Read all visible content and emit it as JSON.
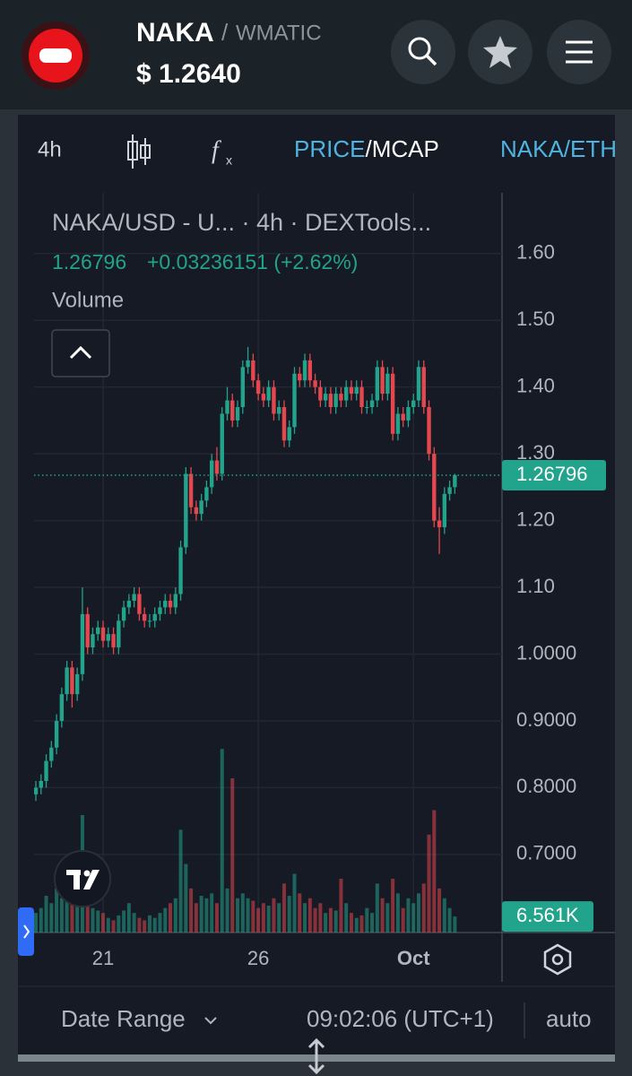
{
  "header": {
    "symbol": "NAKA",
    "separator": "/",
    "quote": "WMATIC",
    "price": "$ 1.2640"
  },
  "toolbar": {
    "interval": "4h",
    "price": "PRICE",
    "slash": "/",
    "mcap": "MCAP",
    "pair": "NAKA/ETH"
  },
  "footer": {
    "range": "Date Range",
    "time": "09:02:06 (UTC+1)",
    "mode": "auto"
  },
  "chart_data": {
    "type": "candlestick",
    "title": "NAKA/USD - U... · 4h · DEXTools...",
    "change": "+0.03236151 (+2.62%)",
    "volume_title": "Volume",
    "up_color": "#22a38b",
    "down_color": "#e5474f",
    "grid": true,
    "categories": [
      null,
      null,
      null,
      null,
      null,
      null,
      null,
      null,
      null,
      null,
      null,
      null,
      null,
      "21",
      null,
      null,
      null,
      null,
      null,
      null,
      null,
      null,
      null,
      null,
      null,
      null,
      null,
      null,
      null,
      null,
      null,
      null,
      null,
      null,
      null,
      null,
      null,
      null,
      null,
      null,
      null,
      null,
      null,
      "26",
      null,
      null,
      null,
      null,
      null,
      null,
      null,
      null,
      null,
      null,
      null,
      null,
      null,
      null,
      null,
      null,
      null,
      null,
      null,
      null,
      null,
      null,
      null,
      null,
      null,
      null,
      null,
      null,
      null,
      "Oct",
      null,
      null,
      null,
      null,
      null,
      null,
      null,
      null
    ],
    "open": [
      0.79,
      0.8,
      0.81,
      0.84,
      0.86,
      0.9,
      0.94,
      0.98,
      0.94,
      0.97,
      1.06,
      1.01,
      1.03,
      1.04,
      1.02,
      1.03,
      1.01,
      1.05,
      1.07,
      1.08,
      1.09,
      1.06,
      1.05,
      1.05,
      1.06,
      1.07,
      1.08,
      1.07,
      1.09,
      1.16,
      1.27,
      1.22,
      1.21,
      1.23,
      1.25,
      1.29,
      1.27,
      1.36,
      1.38,
      1.35,
      1.37,
      1.43,
      1.44,
      1.41,
      1.39,
      1.38,
      1.4,
      1.36,
      1.37,
      1.32,
      1.34,
      1.42,
      1.41,
      1.44,
      1.41,
      1.4,
      1.38,
      1.39,
      1.37,
      1.39,
      1.38,
      1.4,
      1.39,
      1.4,
      1.37,
      1.37,
      1.38,
      1.43,
      1.39,
      1.42,
      1.33,
      1.36,
      1.35,
      1.37,
      1.38,
      1.43,
      1.37,
      1.3,
      1.2,
      1.19,
      1.24,
      1.25
    ],
    "high": [
      0.81,
      0.82,
      0.85,
      0.87,
      0.91,
      0.95,
      0.99,
      0.99,
      0.98,
      1.1,
      1.07,
      1.04,
      1.05,
      1.05,
      1.04,
      1.04,
      1.06,
      1.08,
      1.09,
      1.1,
      1.1,
      1.07,
      1.06,
      1.07,
      1.08,
      1.09,
      1.09,
      1.1,
      1.17,
      1.28,
      1.28,
      1.23,
      1.24,
      1.26,
      1.3,
      1.31,
      1.37,
      1.4,
      1.39,
      1.38,
      1.44,
      1.46,
      1.45,
      1.42,
      1.4,
      1.41,
      1.41,
      1.38,
      1.38,
      1.35,
      1.43,
      1.43,
      1.45,
      1.45,
      1.42,
      1.41,
      1.4,
      1.4,
      1.4,
      1.4,
      1.41,
      1.41,
      1.41,
      1.41,
      1.38,
      1.39,
      1.44,
      1.44,
      1.43,
      1.43,
      1.37,
      1.37,
      1.38,
      1.39,
      1.44,
      1.44,
      1.38,
      1.31,
      1.22,
      1.25,
      1.26,
      1.27
    ],
    "low": [
      0.78,
      0.79,
      0.8,
      0.83,
      0.85,
      0.89,
      0.93,
      0.92,
      0.93,
      0.96,
      1.0,
      1.0,
      1.02,
      1.01,
      1.01,
      1.0,
      1.0,
      1.04,
      1.06,
      1.07,
      1.05,
      1.04,
      1.04,
      1.04,
      1.05,
      1.06,
      1.06,
      1.06,
      1.08,
      1.15,
      1.21,
      1.2,
      1.2,
      1.22,
      1.24,
      1.26,
      1.26,
      1.35,
      1.34,
      1.34,
      1.36,
      1.42,
      1.4,
      1.38,
      1.37,
      1.37,
      1.35,
      1.35,
      1.31,
      1.31,
      1.33,
      1.4,
      1.4,
      1.4,
      1.39,
      1.37,
      1.37,
      1.36,
      1.36,
      1.37,
      1.37,
      1.38,
      1.38,
      1.36,
      1.36,
      1.36,
      1.37,
      1.38,
      1.38,
      1.32,
      1.32,
      1.34,
      1.34,
      1.36,
      1.37,
      1.36,
      1.29,
      1.19,
      1.15,
      1.18,
      1.23,
      1.24
    ],
    "close": [
      0.8,
      0.81,
      0.84,
      0.86,
      0.9,
      0.94,
      0.98,
      0.94,
      0.97,
      1.06,
      1.01,
      1.03,
      1.04,
      1.02,
      1.03,
      1.01,
      1.05,
      1.07,
      1.08,
      1.09,
      1.06,
      1.05,
      1.05,
      1.06,
      1.07,
      1.08,
      1.07,
      1.09,
      1.16,
      1.27,
      1.22,
      1.21,
      1.23,
      1.25,
      1.29,
      1.27,
      1.36,
      1.38,
      1.35,
      1.37,
      1.43,
      1.44,
      1.41,
      1.39,
      1.38,
      1.4,
      1.36,
      1.37,
      1.32,
      1.34,
      1.42,
      1.41,
      1.44,
      1.41,
      1.4,
      1.38,
      1.39,
      1.37,
      1.39,
      1.38,
      1.4,
      1.39,
      1.4,
      1.37,
      1.37,
      1.38,
      1.43,
      1.39,
      1.42,
      1.33,
      1.36,
      1.35,
      1.37,
      1.38,
      1.43,
      1.37,
      1.3,
      1.2,
      1.19,
      1.24,
      1.25,
      1.26796
    ],
    "volume": [
      8000,
      10000,
      15000,
      12000,
      18000,
      14000,
      22000,
      16000,
      12000,
      48000,
      16000,
      10000,
      9000,
      8000,
      6000,
      5000,
      7000,
      9000,
      12000,
      8000,
      6000,
      5000,
      7000,
      6000,
      8000,
      10000,
      12000,
      14000,
      42000,
      28000,
      18000,
      12000,
      15000,
      14000,
      16000,
      12000,
      75000,
      18000,
      63000,
      14000,
      16000,
      14000,
      13000,
      10000,
      12000,
      11000,
      14000,
      12000,
      20000,
      15000,
      24000,
      16000,
      12000,
      14000,
      10000,
      12000,
      8000,
      10000,
      9000,
      22000,
      12000,
      8000,
      6000,
      7000,
      10000,
      8000,
      20000,
      14000,
      12000,
      22000,
      16000,
      10000,
      14000,
      12000,
      16000,
      20000,
      40000,
      50000,
      18000,
      14000,
      10000,
      6561
    ],
    "volume_lim": [
      0,
      100000
    ],
    "last_price": 1.26796,
    "last_volume": {
      "value": 6561,
      "label": "6.561K"
    },
    "ylim": [
      0.583,
      1.691
    ],
    "yticks": [
      {
        "value": 1.6,
        "label": "1.60"
      },
      {
        "value": 1.5,
        "label": "1.50"
      },
      {
        "value": 1.4,
        "label": "1.40"
      },
      {
        "value": 1.3,
        "label": "1.30"
      },
      {
        "value": 1.2,
        "label": "1.20"
      },
      {
        "value": 1.1,
        "label": "1.10"
      },
      {
        "value": 1.0,
        "label": "1.0000"
      },
      {
        "value": 0.9,
        "label": "0.9000"
      },
      {
        "value": 0.8,
        "label": "0.8000"
      },
      {
        "value": 0.7,
        "label": "0.7000"
      }
    ]
  }
}
